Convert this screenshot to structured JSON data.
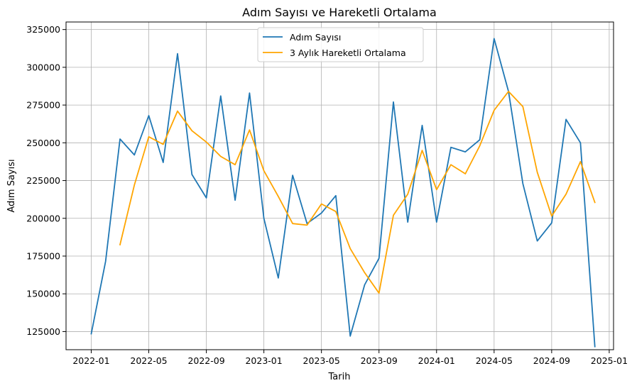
{
  "chart_data": {
    "type": "line",
    "title": "Adım Sayısı ve Hareketli Ortalama",
    "xlabel": "Tarih",
    "ylabel": "Adım Sayısı",
    "x": [
      "2022-01",
      "2022-02",
      "2022-03",
      "2022-04",
      "2022-05",
      "2022-06",
      "2022-07",
      "2022-08",
      "2022-09",
      "2022-10",
      "2022-11",
      "2022-12",
      "2023-01",
      "2023-02",
      "2023-03",
      "2023-04",
      "2023-05",
      "2023-06",
      "2023-07",
      "2023-08",
      "2023-09",
      "2023-10",
      "2023-11",
      "2023-12",
      "2024-01",
      "2024-02",
      "2024-03",
      "2024-04",
      "2024-05",
      "2024-06",
      "2024-07",
      "2024-08",
      "2024-09",
      "2024-10",
      "2024-11",
      "2024-12"
    ],
    "x_ticks": [
      "2022-01",
      "2022-05",
      "2022-09",
      "2023-01",
      "2023-05",
      "2023-09",
      "2024-01",
      "2024-05",
      "2024-09",
      "2025-01"
    ],
    "ylim": [
      113000,
      330000
    ],
    "y_ticks": [
      125000,
      150000,
      175000,
      200000,
      225000,
      250000,
      275000,
      300000,
      325000
    ],
    "grid": true,
    "legend_position": "top-center",
    "series": [
      {
        "name": "Adım Sayısı",
        "color": "#1f77b4",
        "values": [
          123500,
          171500,
          252500,
          242000,
          268000,
          237000,
          309000,
          229000,
          213500,
          281000,
          212000,
          283000,
          200000,
          160500,
          228500,
          196500,
          203500,
          215000,
          122000,
          156000,
          173500,
          277000,
          197500,
          261500,
          197500,
          247000,
          244000,
          252000,
          319000,
          284000,
          223000,
          185000,
          197000,
          265500,
          250000,
          115000
        ]
      },
      {
        "name": "3 Aylık Hareketli Ortalama",
        "color": "#ffa500",
        "values": [
          null,
          null,
          182500,
          222000,
          254000,
          249000,
          271000,
          258000,
          250500,
          241000,
          235500,
          258500,
          231500,
          214500,
          196500,
          195500,
          209500,
          204500,
          180000,
          164000,
          150500,
          202000,
          216000,
          245000,
          219000,
          235500,
          229500,
          248000,
          271500,
          284000,
          274000,
          230500,
          201500,
          216000,
          237500,
          210500
        ]
      }
    ]
  }
}
